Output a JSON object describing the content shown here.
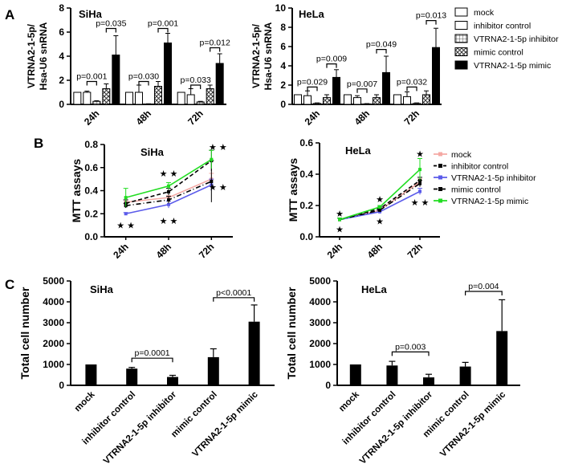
{
  "panel_labels": [
    "A",
    "B",
    "C"
  ],
  "colors": {
    "ink": "#000000",
    "mock": "#f4a9a4",
    "inhibitor_control": "#000000",
    "inhibitor": "#5b5bea",
    "mimic_control": "#000000",
    "mimic": "#22dd22"
  },
  "chart_data": [
    {
      "id": "A_SiHa",
      "type": "bar",
      "title": "SiHa",
      "ylabel": "VTRNA2-1-5p/ Hsa-U6 snRNA",
      "ylim": [
        0,
        8
      ],
      "yticks": [
        0,
        2,
        4,
        6,
        8
      ],
      "categories": [
        "24h",
        "48h",
        "72h"
      ],
      "series": [
        {
          "name": "mock",
          "pattern": "white",
          "values": [
            1.0,
            1.0,
            1.0
          ],
          "errors": [
            0,
            0,
            0
          ]
        },
        {
          "name": "inhibitor control",
          "pattern": "white",
          "values": [
            1.0,
            1.0,
            0.8
          ],
          "errors": [
            0.1,
            0.6,
            0.5
          ]
        },
        {
          "name": "VTRNA2-1-5p inhibitor",
          "pattern": "grid",
          "values": [
            0.25,
            0.03,
            0.2
          ],
          "errors": [
            0.05,
            0.02,
            0.05
          ]
        },
        {
          "name": "mimic control",
          "pattern": "cross",
          "values": [
            1.3,
            1.5,
            1.3
          ],
          "errors": [
            0.4,
            0.4,
            0.3
          ]
        },
        {
          "name": "VTRNA2-1-5p mimic",
          "pattern": "black",
          "values": [
            4.1,
            5.1,
            3.4
          ],
          "errors": [
            1.6,
            0.8,
            0.8
          ]
        }
      ],
      "brackets": [
        {
          "group": 0,
          "from": 1,
          "to": 2,
          "label": "p=0.001",
          "y": 1.9
        },
        {
          "group": 0,
          "from": 3,
          "to": 4,
          "label": "p=0.035",
          "y": 6.3
        },
        {
          "group": 1,
          "from": 1,
          "to": 2,
          "label": "p=0.030",
          "y": 1.9
        },
        {
          "group": 1,
          "from": 3,
          "to": 4,
          "label": "p=0.001",
          "y": 6.3
        },
        {
          "group": 2,
          "from": 1,
          "to": 2,
          "label": "p=0.033",
          "y": 1.6
        },
        {
          "group": 2,
          "from": 3,
          "to": 4,
          "label": "p=0.012",
          "y": 4.7
        }
      ]
    },
    {
      "id": "A_HeLa",
      "type": "bar",
      "title": "HeLa",
      "ylabel": "VTRNA2-1-5p/ Hsa-U6 snRNA",
      "ylim": [
        0,
        10
      ],
      "yticks": [
        0,
        2,
        4,
        6,
        8,
        10
      ],
      "categories": [
        "24h",
        "48h",
        "72h"
      ],
      "series": [
        {
          "name": "mock",
          "pattern": "white",
          "values": [
            1.0,
            1.0,
            1.0
          ],
          "errors": [
            0,
            0,
            0
          ]
        },
        {
          "name": "inhibitor control",
          "pattern": "white",
          "values": [
            0.9,
            0.7,
            0.8
          ],
          "errors": [
            0.5,
            0.2,
            0.5
          ]
        },
        {
          "name": "VTRNA2-1-5p inhibitor",
          "pattern": "grid",
          "values": [
            0.1,
            0.05,
            0.1
          ],
          "errors": [
            0.05,
            0.03,
            0.05
          ]
        },
        {
          "name": "mimic control",
          "pattern": "cross",
          "values": [
            0.7,
            0.7,
            1.0
          ],
          "errors": [
            0.3,
            0.3,
            0.4
          ]
        },
        {
          "name": "VTRNA2-1-5p mimic",
          "pattern": "black",
          "values": [
            2.8,
            3.3,
            5.9
          ],
          "errors": [
            0.8,
            1.7,
            2.0
          ]
        }
      ],
      "brackets": [
        {
          "group": 0,
          "from": 1,
          "to": 2,
          "label": "p=0.029",
          "y": 1.8
        },
        {
          "group": 0,
          "from": 3,
          "to": 4,
          "label": "p=0.009",
          "y": 4.2
        },
        {
          "group": 1,
          "from": 1,
          "to": 2,
          "label": "p=0.007",
          "y": 1.6
        },
        {
          "group": 1,
          "from": 3,
          "to": 4,
          "label": "p=0.049",
          "y": 5.7
        },
        {
          "group": 2,
          "from": 1,
          "to": 2,
          "label": "p=0.032",
          "y": 1.8
        },
        {
          "group": 2,
          "from": 3,
          "to": 4,
          "label": "p=0.013",
          "y": 8.7
        }
      ]
    },
    {
      "id": "B_SiHa",
      "type": "line",
      "title": "SiHa",
      "ylabel": "MTT assays",
      "ylim": [
        0,
        0.8
      ],
      "yticks": [
        0.0,
        0.2,
        0.4,
        0.6,
        0.8
      ],
      "x": [
        "24h",
        "48h",
        "72h"
      ],
      "series": [
        {
          "name": "mock",
          "color": "#f4a9a4",
          "dash": "solid",
          "values": [
            0.3,
            0.34,
            0.5
          ],
          "errors": [
            0.02,
            0.02,
            0.05
          ]
        },
        {
          "name": "inhibitor control",
          "color": "#000000",
          "dash": "dashed",
          "values": [
            0.29,
            0.39,
            0.66
          ],
          "errors": [
            0.03,
            0.03,
            0.09
          ]
        },
        {
          "name": "VTRNA2-1-5p inhibitor",
          "color": "#5b5bea",
          "dash": "solid",
          "values": [
            0.2,
            0.28,
            0.45
          ],
          "errors": [
            0.01,
            0.03,
            0.05
          ]
        },
        {
          "name": "mimic control",
          "color": "#000000",
          "dash": "dashdot",
          "values": [
            0.27,
            0.32,
            0.48
          ],
          "errors": [
            0.02,
            0.03,
            0.18
          ]
        },
        {
          "name": "VTRNA2-1-5p mimic",
          "color": "#22dd22",
          "dash": "solid",
          "values": [
            0.34,
            0.44,
            0.67
          ],
          "errors": [
            0.08,
            0.03,
            0.08
          ]
        }
      ],
      "stars": [
        {
          "x": 0,
          "y": 0.1,
          "label": "★ ★"
        },
        {
          "x": 1,
          "y": 0.55,
          "label": "★ ★"
        },
        {
          "x": 1,
          "y": 0.14,
          "label": "★ ★"
        },
        {
          "x": 2.15,
          "y": 0.78,
          "label": "★ ★"
        },
        {
          "x": 2.15,
          "y": 0.43,
          "label": "★ ★"
        }
      ]
    },
    {
      "id": "B_HeLa",
      "type": "line",
      "title": "HeLa",
      "ylabel": "MTT assays",
      "ylim": [
        0,
        0.6
      ],
      "yticks": [
        0.0,
        0.2,
        0.4,
        0.6
      ],
      "x": [
        "24h",
        "48h",
        "72h"
      ],
      "series": [
        {
          "name": "mock",
          "color": "#f4a9a4",
          "dash": "solid",
          "values": [
            0.11,
            0.17,
            0.35
          ],
          "errors": [
            0.01,
            0.01,
            0.02
          ]
        },
        {
          "name": "inhibitor control",
          "color": "#000000",
          "dash": "dashed",
          "values": [
            0.11,
            0.18,
            0.36
          ],
          "errors": [
            0.01,
            0.01,
            0.02
          ]
        },
        {
          "name": "VTRNA2-1-5p inhibitor",
          "color": "#5b5bea",
          "dash": "solid",
          "values": [
            0.11,
            0.16,
            0.29
          ],
          "errors": [
            0.01,
            0.01,
            0.02
          ]
        },
        {
          "name": "mimic control",
          "color": "#000000",
          "dash": "dashdot",
          "values": [
            0.11,
            0.17,
            0.34
          ],
          "errors": [
            0.01,
            0.01,
            0.02
          ]
        },
        {
          "name": "VTRNA2-1-5p mimic",
          "color": "#22dd22",
          "dash": "solid",
          "values": [
            0.11,
            0.19,
            0.43
          ],
          "errors": [
            0.01,
            0.01,
            0.07
          ]
        }
      ],
      "stars": [
        {
          "x": 0,
          "y": 0.15,
          "label": "★"
        },
        {
          "x": 0,
          "y": 0.05,
          "label": "★"
        },
        {
          "x": 1,
          "y": 0.24,
          "label": "★"
        },
        {
          "x": 1,
          "y": 0.1,
          "label": "★"
        },
        {
          "x": 2,
          "y": 0.53,
          "label": "★"
        },
        {
          "x": 2,
          "y": 0.22,
          "label": "★ ★"
        }
      ]
    },
    {
      "id": "C_SiHa",
      "type": "bar",
      "title": "SiHa",
      "ylabel": "Total cell number",
      "ylim": [
        0,
        5000
      ],
      "yticks": [
        0,
        1000,
        2000,
        3000,
        4000,
        5000
      ],
      "categories": [
        "mock",
        "inhibitor control",
        "VTRNA2-1-5p inhibitor",
        "mimic control",
        "VTRNA2-1-5p mimic"
      ],
      "values": [
        1000,
        800,
        400,
        1350,
        3050
      ],
      "errors": [
        0,
        60,
        80,
        400,
        800
      ],
      "brackets": [
        {
          "from": 1,
          "to": 2,
          "label": "p=0.0001",
          "y": 1300
        },
        {
          "from": 3,
          "to": 4,
          "label": "p<0.0001",
          "y": 4200
        }
      ]
    },
    {
      "id": "C_HeLa",
      "type": "bar",
      "title": "HeLa",
      "ylabel": "Total cell number",
      "ylim": [
        0,
        5000
      ],
      "yticks": [
        0,
        1000,
        2000,
        3000,
        4000,
        5000
      ],
      "categories": [
        "mock",
        "inhibitor control",
        "VTRNA2-1-5p inhibitor",
        "mimic control",
        "VTRNA2-1-5p mimic"
      ],
      "values": [
        1000,
        950,
        380,
        900,
        2600
      ],
      "errors": [
        0,
        200,
        150,
        200,
        1500
      ],
      "brackets": [
        {
          "from": 1,
          "to": 2,
          "label": "p=0.003",
          "y": 1600
        },
        {
          "from": 3,
          "to": 4,
          "label": "p=0.004",
          "y": 4500
        }
      ]
    }
  ]
}
